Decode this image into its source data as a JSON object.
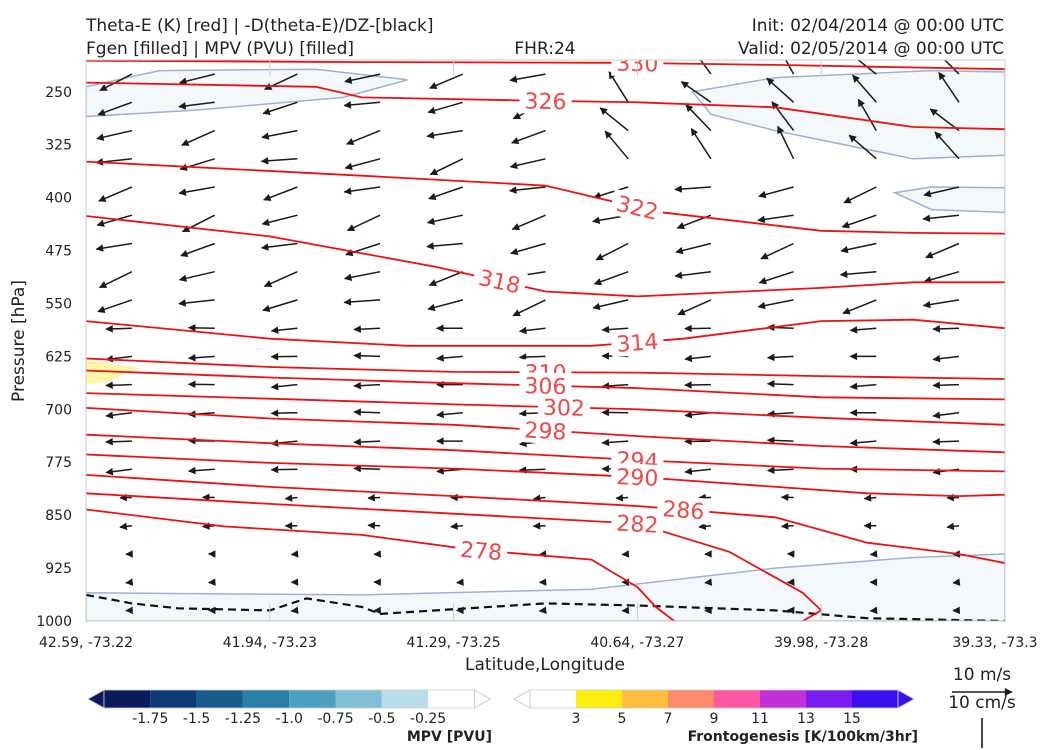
{
  "header": {
    "line1_left": "Theta-E (K) [red] | -D(theta-E)/DZ-[black]",
    "line2_left": "Fgen [filled] | MPV (PVU) [filled]",
    "fhr": "FHR:24",
    "init": "Init: 02/04/2014 @ 00:00 UTC",
    "valid": "Valid: 02/05/2014 @ 00:00 UTC"
  },
  "chart_data": {
    "type": "cross-section",
    "xlabel": "Latitude,Longitude",
    "ylabel": "Pressure [hPa]",
    "x_ticks": [
      "42.59, -73.22",
      "41.94, -73.23",
      "41.29, -73.25",
      "40.64, -73.27",
      "39.98, -73.28",
      "39.33, -73.3"
    ],
    "y_ticks": [
      250,
      325,
      400,
      475,
      550,
      625,
      700,
      775,
      850,
      925,
      1000
    ],
    "ylim": [
      1000,
      205
    ],
    "theta_e_contours": [
      {
        "label": "330",
        "points": [
          [
            0,
            206
          ],
          [
            0.3,
            208
          ],
          [
            0.58,
            209
          ],
          [
            0.75,
            212
          ],
          [
            1.0,
            218
          ]
        ],
        "label_x": 0.6
      },
      {
        "label": "326",
        "points": [
          [
            0,
            237
          ],
          [
            0.25,
            243
          ],
          [
            0.3,
            258
          ],
          [
            0.5,
            263
          ],
          [
            0.6,
            265
          ],
          [
            0.75,
            272
          ],
          [
            0.9,
            300
          ],
          [
            1.0,
            303
          ]
        ],
        "label_x": 0.5
      },
      {
        "label": "322",
        "points": [
          [
            0,
            349
          ],
          [
            0.3,
            369
          ],
          [
            0.5,
            383
          ],
          [
            0.62,
            420
          ],
          [
            0.8,
            447
          ],
          [
            0.9,
            450
          ],
          [
            1.0,
            451
          ]
        ],
        "label_x": 0.6
      },
      {
        "label": "318",
        "points": [
          [
            0,
            426
          ],
          [
            0.2,
            455
          ],
          [
            0.38,
            498
          ],
          [
            0.5,
            533
          ],
          [
            0.6,
            540
          ],
          [
            0.8,
            528
          ],
          [
            0.9,
            520
          ],
          [
            1.0,
            520
          ]
        ],
        "label_x": 0.45
      },
      {
        "label": "314",
        "points": [
          [
            0,
            575
          ],
          [
            0.2,
            600
          ],
          [
            0.35,
            610
          ],
          [
            0.55,
            610
          ],
          [
            0.65,
            600
          ],
          [
            0.8,
            575
          ],
          [
            0.9,
            573
          ],
          [
            1.0,
            585
          ]
        ],
        "label_x": 0.6
      },
      {
        "label": "310",
        "points": [
          [
            0,
            628
          ],
          [
            0.2,
            640
          ],
          [
            0.4,
            647
          ],
          [
            0.6,
            648
          ],
          [
            0.8,
            653
          ],
          [
            1.0,
            657
          ]
        ],
        "label_x": 0.5
      },
      {
        "label": "306",
        "points": [
          [
            0,
            645
          ],
          [
            0.2,
            655
          ],
          [
            0.4,
            663
          ],
          [
            0.6,
            670
          ],
          [
            0.8,
            683
          ],
          [
            1.0,
            686
          ]
        ],
        "label_x": 0.5
      },
      {
        "label": "302",
        "points": [
          [
            0,
            677
          ],
          [
            0.2,
            685
          ],
          [
            0.4,
            693
          ],
          [
            0.6,
            700
          ],
          [
            0.8,
            712
          ],
          [
            1.0,
            722
          ]
        ],
        "label_x": 0.52
      },
      {
        "label": "298",
        "points": [
          [
            0,
            698
          ],
          [
            0.2,
            713
          ],
          [
            0.4,
            722
          ],
          [
            0.6,
            738
          ],
          [
            0.8,
            752
          ],
          [
            1.0,
            761
          ]
        ],
        "label_x": 0.5
      },
      {
        "label": "294",
        "points": [
          [
            0,
            736
          ],
          [
            0.2,
            748
          ],
          [
            0.4,
            758
          ],
          [
            0.6,
            772
          ],
          [
            0.8,
            784
          ],
          [
            1.0,
            788
          ]
        ],
        "label_x": 0.6
      },
      {
        "label": "290",
        "points": [
          [
            0,
            764
          ],
          [
            0.2,
            776
          ],
          [
            0.4,
            784
          ],
          [
            0.6,
            796
          ],
          [
            0.85,
            819
          ],
          [
            0.95,
            823
          ],
          [
            1.0,
            821
          ]
        ],
        "label_x": 0.6
      },
      {
        "label": "286",
        "points": [
          [
            0,
            793
          ],
          [
            0.2,
            810
          ],
          [
            0.4,
            823
          ],
          [
            0.6,
            837
          ],
          [
            0.75,
            853
          ],
          [
            0.85,
            889
          ],
          [
            0.95,
            905
          ],
          [
            1.0,
            918
          ]
        ],
        "label_x": 0.65
      },
      {
        "label": "282",
        "points": [
          [
            0,
            819
          ],
          [
            0.2,
            834
          ],
          [
            0.4,
            848
          ],
          [
            0.6,
            862
          ],
          [
            0.7,
            902
          ],
          [
            0.78,
            960
          ],
          [
            0.8,
            985
          ],
          [
            0.78,
            1000
          ]
        ],
        "label_x": 0.6
      },
      {
        "label": "278",
        "points": [
          [
            0,
            842
          ],
          [
            0.15,
            866
          ],
          [
            0.3,
            878
          ],
          [
            0.42,
            899
          ],
          [
            0.55,
            913
          ],
          [
            0.6,
            952
          ],
          [
            0.62,
            980
          ],
          [
            0.64,
            1000
          ]
        ],
        "label_x": 0.43
      }
    ],
    "stability_dashed": {
      "points": [
        [
          0,
          963
        ],
        [
          0.05,
          975
        ],
        [
          0.1,
          982
        ],
        [
          0.2,
          985
        ],
        [
          0.24,
          968
        ],
        [
          0.3,
          980
        ],
        [
          0.32,
          990
        ],
        [
          0.5,
          975
        ],
        [
          0.6,
          978
        ],
        [
          0.75,
          985
        ],
        [
          0.85,
          996
        ],
        [
          1.0,
          1000
        ]
      ]
    },
    "mpv_regions": [
      {
        "value": -0.25,
        "points": [
          [
            0,
            243
          ],
          [
            0.08,
            220
          ],
          [
            0.25,
            218
          ],
          [
            0.35,
            233
          ],
          [
            0.28,
            258
          ],
          [
            0.12,
            276
          ],
          [
            0,
            285
          ]
        ]
      },
      {
        "value": -0.25,
        "points": [
          [
            0.66,
            250
          ],
          [
            0.75,
            230
          ],
          [
            0.92,
            220
          ],
          [
            1.0,
            222
          ],
          [
            1.0,
            340
          ],
          [
            0.9,
            345
          ],
          [
            0.75,
            305
          ],
          [
            0.68,
            282
          ]
        ]
      },
      {
        "value": -0.25,
        "points": [
          [
            0.88,
            393
          ],
          [
            0.92,
            385
          ],
          [
            1.0,
            386
          ],
          [
            1.0,
            421
          ],
          [
            0.92,
            417
          ]
        ]
      },
      {
        "value": -0.25,
        "points": [
          [
            0,
            960
          ],
          [
            0.3,
            963
          ],
          [
            0.55,
            955
          ],
          [
            0.75,
            925
          ],
          [
            0.9,
            910
          ],
          [
            1.0,
            905
          ],
          [
            1.0,
            1000
          ],
          [
            0,
            1000
          ]
        ]
      }
    ],
    "fgen_regions": [
      {
        "value": 3,
        "points": [
          [
            0,
            630
          ],
          [
            0.06,
            642
          ],
          [
            0.02,
            662
          ],
          [
            0,
            664
          ]
        ]
      }
    ],
    "mpv_colorbar": {
      "label": "MPV [PVU]",
      "ticks": [
        "-1.75",
        "-1.5",
        "-1.25",
        "-1.0",
        "-0.75",
        "-0.5",
        "-0.25"
      ],
      "colors": [
        "#0a1a5c",
        "#0e3a78",
        "#185c8e",
        "#2a7fa8",
        "#4d9fc0",
        "#80bfd6",
        "#b8dce8",
        "#ffffff"
      ]
    },
    "fgen_colorbar": {
      "label": "Frontogenesis [K/100km/3hr]",
      "ticks": [
        "3",
        "5",
        "7",
        "9",
        "11",
        "13",
        "15"
      ],
      "colors": [
        "#ffffff",
        "#ffee10",
        "#ffbe3e",
        "#ff8a6a",
        "#ff58a2",
        "#c231d8",
        "#7a1cf0",
        "#3a10ee"
      ]
    },
    "vector_key": {
      "label_top": "10 m/s",
      "label_bottom": "10 cm/s"
    }
  }
}
